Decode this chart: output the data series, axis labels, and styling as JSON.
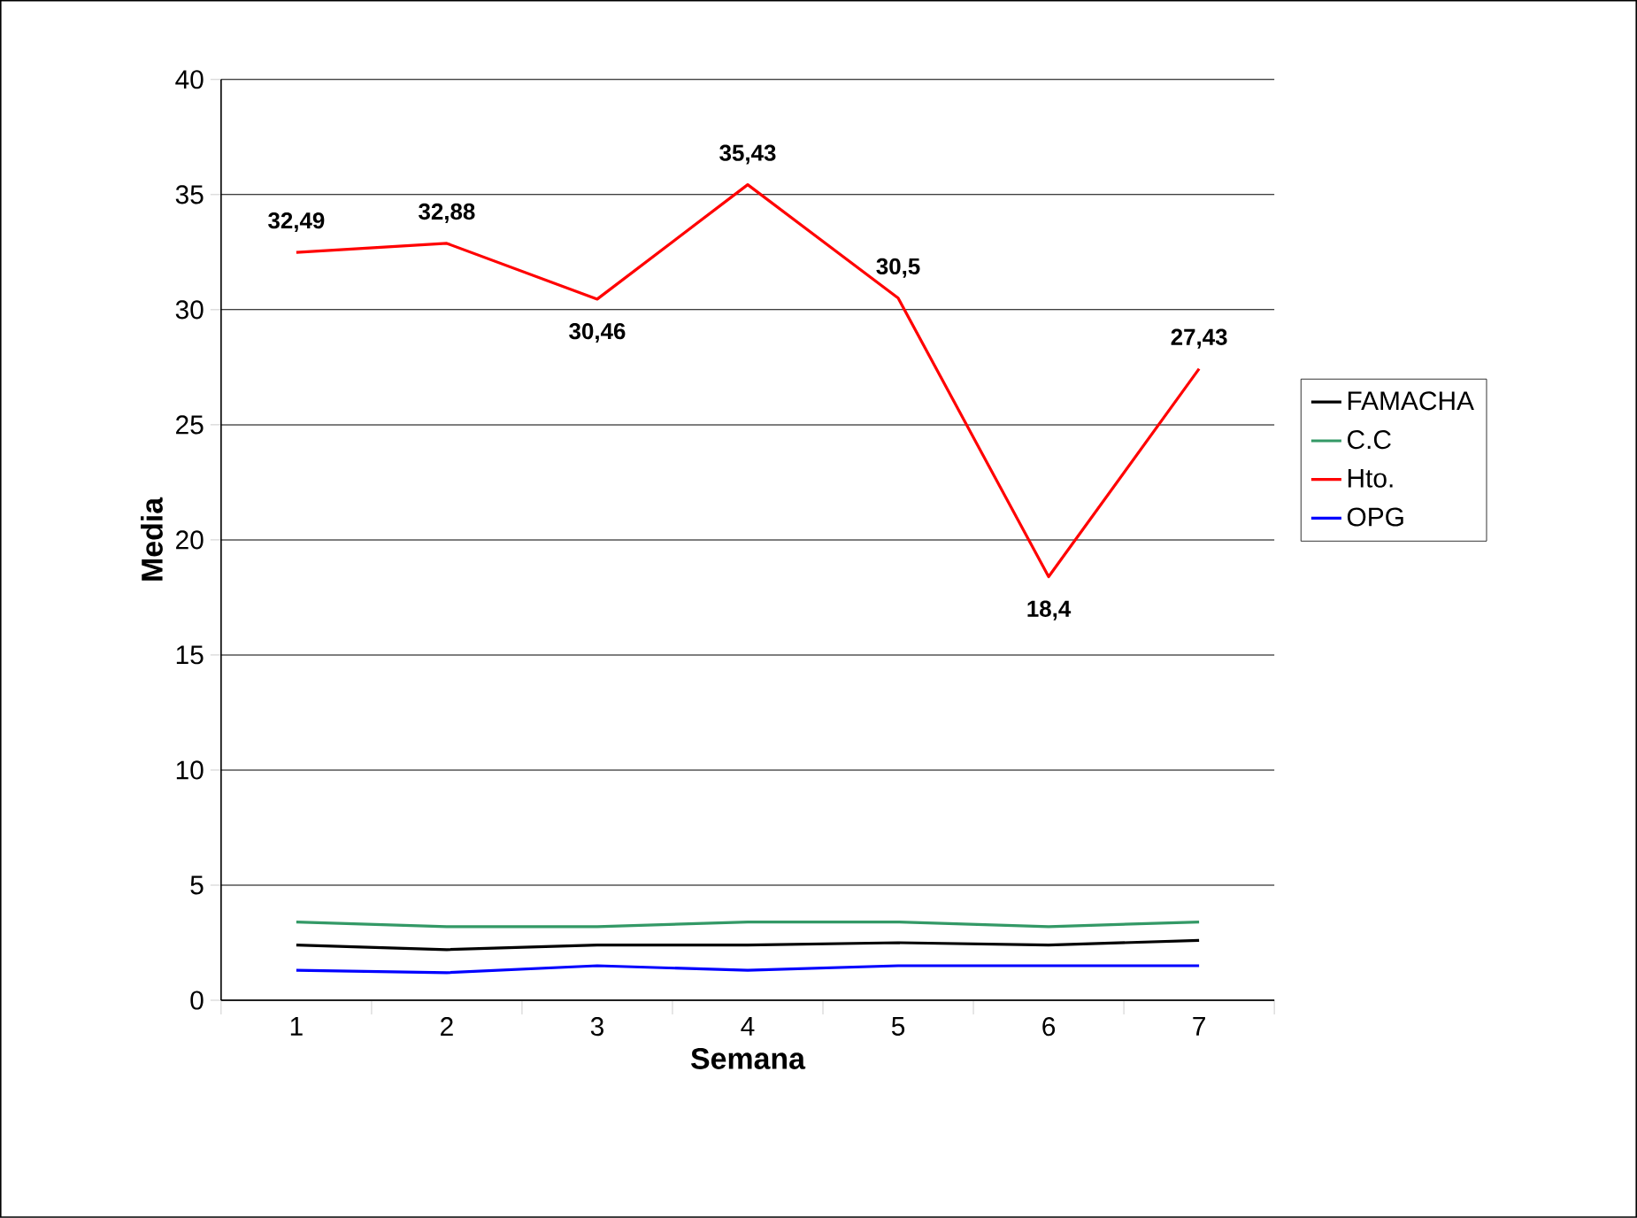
{
  "chart_data": {
    "type": "line",
    "xlabel": "Semana",
    "ylabel": "Media",
    "categories": [
      "1",
      "2",
      "3",
      "4",
      "5",
      "6",
      "7"
    ],
    "series": [
      {
        "name": "FAMACHA",
        "color": "#000000",
        "values": [
          2.4,
          2.2,
          2.4,
          2.4,
          2.5,
          2.4,
          2.6
        ]
      },
      {
        "name": "C.C",
        "color": "#339966",
        "values": [
          3.4,
          3.2,
          3.2,
          3.4,
          3.4,
          3.2,
          3.4
        ]
      },
      {
        "name": "Hto.",
        "color": "#ff0000",
        "values": [
          32.49,
          32.88,
          30.46,
          35.43,
          30.5,
          18.4,
          27.43
        ],
        "value_labels": [
          "32,49",
          "32,88",
          "30,46",
          "35,43",
          "30,5",
          "18,4",
          "27,43"
        ]
      },
      {
        "name": "OPG",
        "color": "#0000ff",
        "values": [
          1.3,
          1.2,
          1.5,
          1.3,
          1.5,
          1.5,
          1.5
        ]
      }
    ],
    "ylim": [
      0,
      40
    ],
    "yticks": [
      0,
      5,
      10,
      15,
      20,
      25,
      30,
      35,
      40
    ],
    "grid": "y",
    "legend": "right",
    "marker": "none",
    "line_style": "solid"
  }
}
